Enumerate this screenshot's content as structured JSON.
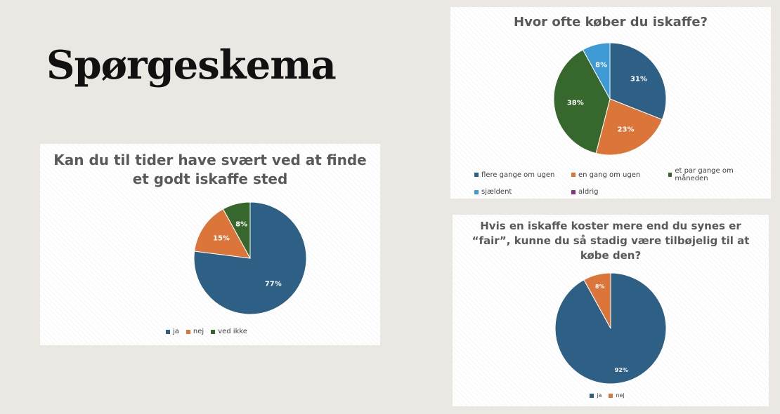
{
  "slide": {
    "title": "Spørgeskema"
  },
  "colors": {
    "blue": "#2e5f84",
    "orange": "#dc7539",
    "green": "#36682d",
    "lightblue": "#3d9ad4",
    "purple": "#8b2c8b"
  },
  "chart_data": [
    {
      "type": "pie",
      "title": "Kan du til tider have svært ved at finde et godt iskaffe sted",
      "title_lines": [
        "Kan du til tider have svært ved at finde",
        "et godt iskaffe sted"
      ],
      "start_angle": 0,
      "slices": [
        {
          "name": "ja",
          "value": 77,
          "label": "77%",
          "color": "#2e5f84"
        },
        {
          "name": "nej",
          "value": 15,
          "label": "15%",
          "color": "#dc7539"
        },
        {
          "name": "ved ikke",
          "value": 8,
          "label": "8%",
          "color": "#36682d"
        }
      ],
      "legend": [
        "ja",
        "nej",
        "ved ikke"
      ]
    },
    {
      "type": "pie",
      "title": "Hvor ofte køber du iskaffe?",
      "title_lines": [
        "Hvor ofte køber du iskaffe?"
      ],
      "start_angle": 0,
      "slices": [
        {
          "name": "flere gange om ugen",
          "value": 31,
          "label": "31%",
          "color": "#2e5f84"
        },
        {
          "name": "en gang om ugen",
          "value": 23,
          "label": "23%",
          "color": "#dc7539"
        },
        {
          "name": "et par gange om måneden",
          "value": 38,
          "label": "38%",
          "color": "#36682d"
        },
        {
          "name": "sjældent",
          "value": 8,
          "label": "8%",
          "color": "#3d9ad4"
        },
        {
          "name": "aldrig",
          "value": 0,
          "label": "",
          "color": "#8b2c8b"
        }
      ],
      "legend": [
        "flere gange om ugen",
        "en gang om ugen",
        "et par gange om måneden",
        "sjældent",
        "aldrig"
      ]
    },
    {
      "type": "pie",
      "title": "Hvis en iskaffe koster mere end du synes er “fair”, kunne du så stadig være tilbøjelig til at købe den?",
      "title_lines": [
        "Hvis en iskaffe koster mere end du synes er",
        "“fair”, kunne du så stadig være tilbøjelig til at",
        "købe den?"
      ],
      "start_angle": 0,
      "slices": [
        {
          "name": "ja",
          "value": 92,
          "label": "92%",
          "color": "#2e5f84"
        },
        {
          "name": "nej",
          "value": 8,
          "label": "8%",
          "color": "#dc7539"
        }
      ],
      "legend": [
        "ja",
        "nej"
      ]
    }
  ]
}
